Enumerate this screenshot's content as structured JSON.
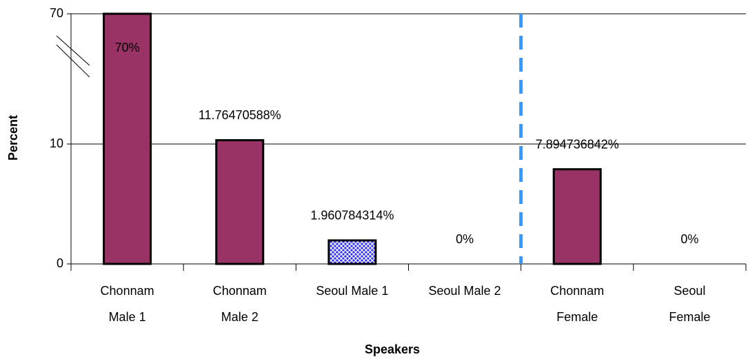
{
  "chart_data": {
    "type": "bar",
    "x_label": "Speakers",
    "y_label": "Percent",
    "categories": [
      "Chonnam Male 1",
      "Chonnam Male 2",
      "Seoul Male 1",
      "Seoul Male 2",
      "Chonnam Female",
      "Seoul Female"
    ],
    "values": [
      70,
      11.76470588,
      1.960784314,
      0,
      7.894736842,
      0
    ],
    "value_labels": [
      "70%",
      "11.76470588%",
      "1.960784314%",
      "0%",
      "7.894736842%",
      "0%"
    ],
    "colors": [
      "#993366",
      "#993366",
      "#3333ff",
      "#993366",
      "#993366",
      "#993366"
    ],
    "patterns": [
      null,
      null,
      "crosshatch",
      null,
      null,
      null
    ],
    "ylim": [
      0,
      70
    ],
    "yticks": [
      0,
      10,
      70
    ],
    "grid": true
  }
}
